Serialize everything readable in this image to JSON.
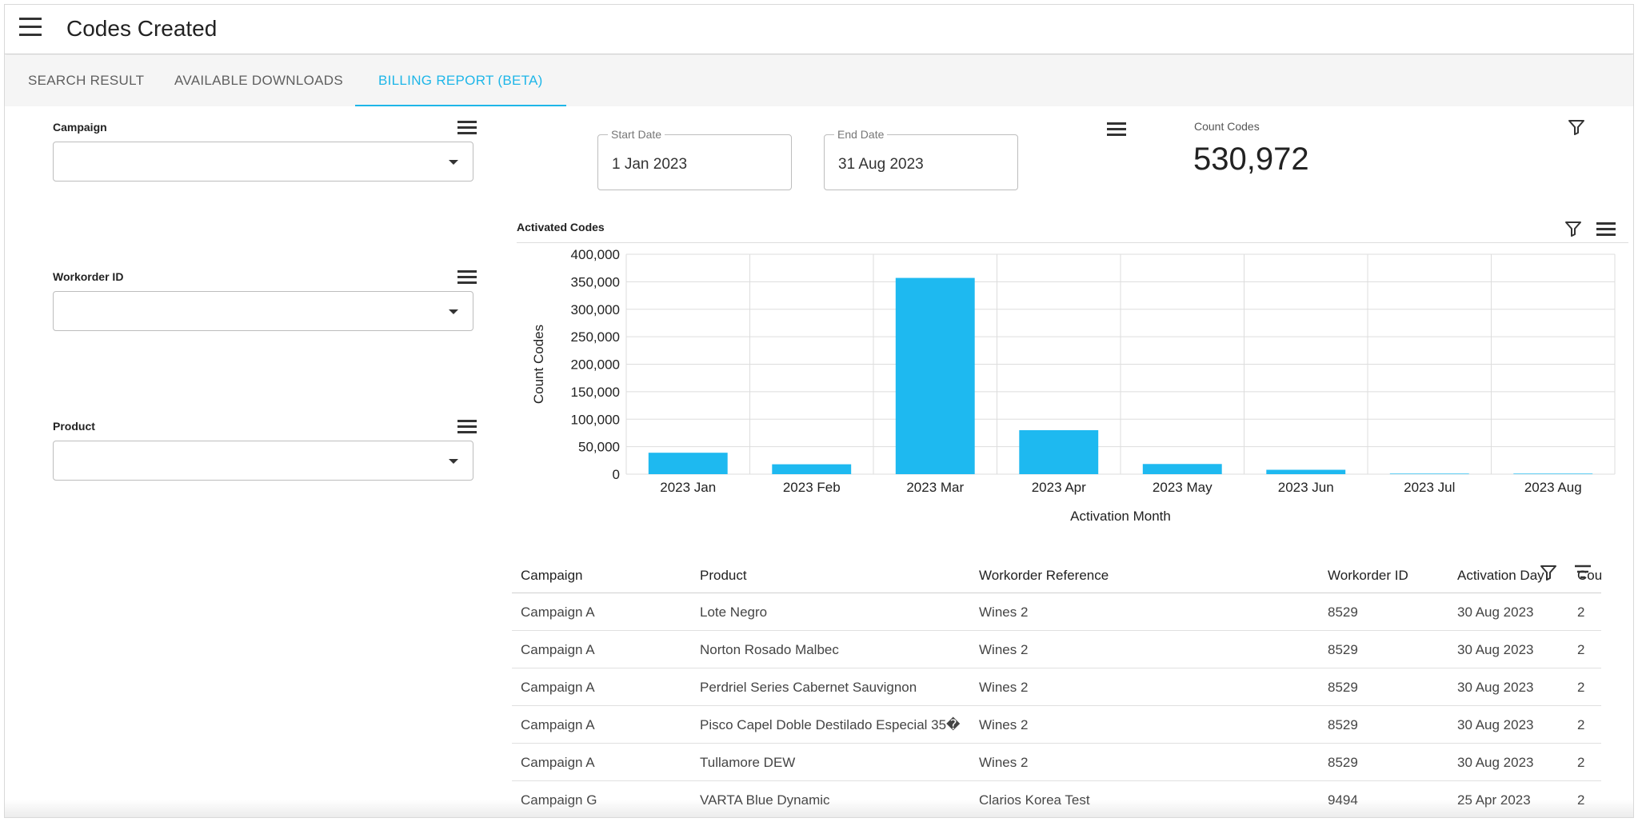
{
  "header": {
    "title": "Codes Created"
  },
  "tabs": [
    {
      "label": "SEARCH RESULT"
    },
    {
      "label": "AVAILABLE DOWNLOADS"
    },
    {
      "label": "BILLING REPORT (BETA)"
    }
  ],
  "filters": {
    "campaign": {
      "label": "Campaign",
      "value": ""
    },
    "workorder": {
      "label": "Workorder ID",
      "value": ""
    },
    "product": {
      "label": "Product",
      "value": ""
    }
  },
  "dates": {
    "start": {
      "label": "Start Date",
      "value": "1 Jan 2023"
    },
    "end": {
      "label": "End Date",
      "value": "31 Aug 2023"
    }
  },
  "kpi": {
    "label": "Count Codes",
    "value": "530,972"
  },
  "chart_section": {
    "title": "Activated Codes"
  },
  "chart_data": {
    "type": "bar",
    "categories": [
      "2023 Jan",
      "2023 Feb",
      "2023 Mar",
      "2023 Apr",
      "2023 May",
      "2023 Jun",
      "2023 Jul",
      "2023 Aug"
    ],
    "values": [
      39000,
      18000,
      357000,
      80000,
      18500,
      8000,
      1000,
      1000
    ],
    "xlabel": "Activation Month",
    "ylabel": "Count Codes",
    "ylim": [
      0,
      400000
    ],
    "yticks": [
      "0",
      "50,000",
      "100,000",
      "150,000",
      "200,000",
      "250,000",
      "300,000",
      "350,000",
      "400,000"
    ],
    "grid": true,
    "color": "#1eb9f0"
  },
  "table": {
    "columns": [
      "Campaign",
      "Product",
      "Workorder Reference",
      "Workorder ID",
      "Activation Day",
      "Cou"
    ],
    "rows": [
      [
        "Campaign A",
        "Lote Negro",
        "Wines 2",
        "8529",
        "30 Aug 2023",
        "2"
      ],
      [
        "Campaign A",
        "Norton Rosado Malbec",
        "Wines 2",
        "8529",
        "30 Aug 2023",
        "2"
      ],
      [
        "Campaign A",
        "Perdriel Series Cabernet Sauvignon",
        "Wines 2",
        "8529",
        "30 Aug 2023",
        "2"
      ],
      [
        "Campaign A",
        "Pisco Capel Doble Destilado Especial 35�",
        "Wines 2",
        "8529",
        "30 Aug 2023",
        "2"
      ],
      [
        "Campaign A",
        "Tullamore DEW",
        "Wines 2",
        "8529",
        "30 Aug 2023",
        "2"
      ],
      [
        "Campaign G",
        "VARTA Blue Dynamic",
        "Clarios Korea Test",
        "9494",
        "25 Apr 2023",
        "2"
      ]
    ]
  },
  "colors": {
    "accent": "#1eb6e8",
    "bar": "#1eb9f0"
  }
}
